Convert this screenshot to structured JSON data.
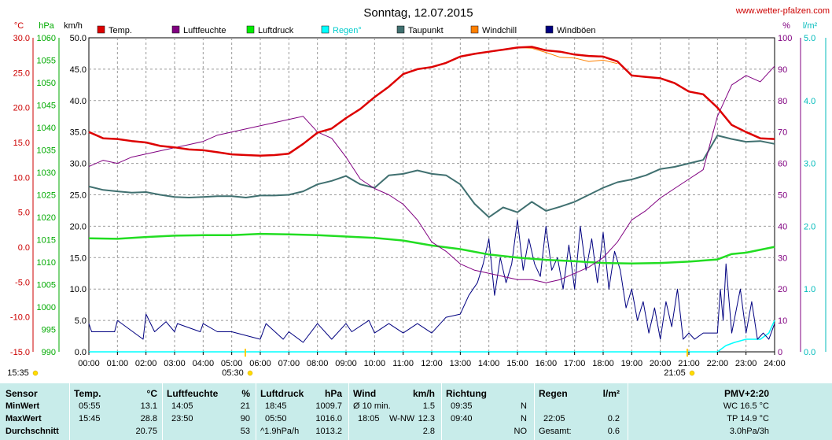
{
  "chart_data": {
    "type": "line",
    "title": "Sonntag, 12.07.2015",
    "source": "www.wetter-pfalzen.com",
    "axes": {
      "temp": {
        "unit": "°C",
        "range": [
          -15,
          30
        ],
        "ticks": [
          "-15.0",
          "-10.0",
          "-5.0",
          "0.0",
          "5.0",
          "10.0",
          "15.0",
          "20.0",
          "25.0",
          "30.0"
        ],
        "color": "#cc0000"
      },
      "pressure": {
        "unit": "hPa",
        "range": [
          990,
          1060
        ],
        "ticks": [
          "990",
          "995",
          "1000",
          "1005",
          "1010",
          "1015",
          "1020",
          "1025",
          "1030",
          "1035",
          "1040",
          "1045",
          "1050",
          "1055",
          "1060"
        ],
        "color": "#00aa00"
      },
      "wind": {
        "unit": "km/h",
        "range": [
          0,
          50
        ],
        "ticks": [
          "0.0",
          "5.0",
          "10.0",
          "15.0",
          "20.0",
          "25.0",
          "30.0",
          "35.0",
          "40.0",
          "45.0",
          "50.0"
        ],
        "color": "#000000"
      },
      "humidity": {
        "unit": "%",
        "range": [
          0,
          100
        ],
        "ticks": [
          "0",
          "10",
          "20",
          "30",
          "40",
          "50",
          "60",
          "70",
          "80",
          "90",
          "100"
        ],
        "color": "#800080"
      },
      "rain": {
        "unit": "l/m²",
        "range": [
          0,
          5
        ],
        "ticks": [
          "0.0",
          "1.0",
          "2.0",
          "3.0",
          "4.0",
          "5.0"
        ],
        "color": "#00bbbb"
      }
    },
    "x_ticks": [
      "00:00",
      "01:00",
      "02:00",
      "03:00",
      "04:00",
      "05:00",
      "06:00",
      "07:00",
      "08:00",
      "09:00",
      "10:00",
      "11:00",
      "12:00",
      "13:00",
      "14:00",
      "15:00",
      "16:00",
      "17:00",
      "18:00",
      "19:00",
      "20:00",
      "21:00",
      "22:00",
      "23:00",
      "24:00"
    ],
    "sun_markers": [
      {
        "time": "15:35",
        "hour": -1.5,
        "row": 1
      },
      {
        "time": "05:30",
        "hour": 5.5,
        "row": 1
      },
      {
        "time": "21:05",
        "hour": 21.08,
        "row": 1
      }
    ],
    "legend": [
      {
        "name": "Temp.",
        "color": "#dd0000"
      },
      {
        "name": "Luftfeuchte",
        "color": "#800080"
      },
      {
        "name": "Luftdruck",
        "color": "#00ee00"
      },
      {
        "name": "Regen°",
        "color": "#00ffff"
      },
      {
        "name": "Taupunkt",
        "color": "#407070"
      },
      {
        "name": "Windchill",
        "color": "#ff8000"
      },
      {
        "name": "Windböen",
        "color": "#000080"
      }
    ],
    "series": [
      {
        "name": "Temp.",
        "axis": "temp",
        "color": "#dd0000",
        "width": 2.5,
        "x": [
          0,
          0.5,
          1,
          1.5,
          2,
          2.5,
          3,
          3.5,
          4,
          4.5,
          5,
          5.5,
          6,
          6.5,
          7,
          7.5,
          8,
          8.5,
          9,
          9.5,
          10,
          10.5,
          11,
          11.5,
          12,
          12.5,
          13,
          13.5,
          14,
          14.5,
          15,
          15.5,
          16,
          16.5,
          17,
          17.5,
          18,
          18.5,
          19,
          19.5,
          20,
          20.5,
          21,
          21.5,
          22,
          22.5,
          23,
          23.5,
          24
        ],
        "y": [
          16.5,
          15.6,
          15.5,
          15.2,
          15.0,
          14.5,
          14.3,
          14.0,
          13.9,
          13.6,
          13.3,
          13.2,
          13.1,
          13.2,
          13.4,
          14.8,
          16.4,
          17.0,
          18.5,
          19.8,
          21.5,
          23.0,
          24.8,
          25.5,
          25.8,
          26.4,
          27.3,
          27.7,
          28.0,
          28.3,
          28.6,
          28.7,
          28.2,
          28.0,
          27.6,
          27.4,
          27.3,
          26.6,
          24.6,
          24.4,
          24.2,
          23.5,
          22.3,
          21.9,
          20.0,
          17.5,
          16.5,
          15.6,
          15.5
        ]
      },
      {
        "name": "Windchill",
        "axis": "temp",
        "color": "#ff8000",
        "width": 1,
        "x": [
          15,
          15.5,
          16,
          16.5,
          17,
          17.5,
          18,
          18.5
        ],
        "y": [
          28.6,
          28.5,
          27.9,
          27.2,
          27.1,
          26.6,
          26.8,
          26.3
        ]
      },
      {
        "name": "Luftfeuchte",
        "axis": "humidity",
        "color": "#800080",
        "width": 1,
        "x": [
          0,
          0.5,
          1,
          1.5,
          2,
          2.5,
          3,
          3.5,
          4,
          4.5,
          5,
          5.5,
          6,
          6.5,
          7,
          7.5,
          8,
          8.5,
          9,
          9.5,
          10,
          10.5,
          11,
          11.5,
          12,
          12.5,
          13,
          13.5,
          14,
          14.5,
          15,
          15.5,
          16,
          16.5,
          17,
          17.5,
          18,
          18.5,
          19,
          19.5,
          20,
          20.5,
          21,
          21.5,
          22,
          22.5,
          23,
          23.5,
          24
        ],
        "y": [
          59,
          61,
          60,
          62,
          63,
          64,
          65,
          66,
          67,
          69,
          70,
          71,
          72,
          73,
          74,
          75,
          70,
          68,
          62,
          55,
          52,
          50,
          47,
          42,
          35,
          32,
          28,
          26,
          25,
          24,
          23,
          23,
          22,
          23,
          25,
          27,
          30,
          35,
          42,
          45,
          49,
          52,
          55,
          58,
          75,
          85,
          88,
          86,
          91
        ]
      },
      {
        "name": "Luftdruck",
        "axis": "pressure",
        "color": "#22dd22",
        "width": 2.5,
        "x": [
          0,
          1,
          2,
          3,
          4,
          5,
          6,
          7,
          8,
          9,
          10,
          11,
          12,
          13,
          14,
          15,
          16,
          17,
          18,
          19,
          20,
          21,
          22,
          22.5,
          23,
          24
        ],
        "y": [
          1015.3,
          1015.2,
          1015.6,
          1015.9,
          1016.0,
          1016.0,
          1016.3,
          1016.2,
          1016.0,
          1015.7,
          1015.4,
          1014.8,
          1013.7,
          1012.9,
          1011.7,
          1011.0,
          1010.5,
          1010.2,
          1009.8,
          1009.7,
          1009.8,
          1010.1,
          1010.6,
          1011.8,
          1012.1,
          1013.4
        ]
      },
      {
        "name": "Taupunkt",
        "axis": "temp",
        "color": "#407070",
        "width": 2,
        "x": [
          0,
          0.5,
          1,
          1.5,
          2,
          2.5,
          3,
          3.5,
          4,
          4.5,
          5,
          5.5,
          6,
          6.5,
          7,
          7.5,
          8,
          8.5,
          9,
          9.5,
          10,
          10.5,
          11,
          11.5,
          12,
          12.5,
          13,
          13.5,
          14,
          14.5,
          15,
          15.5,
          16,
          16.5,
          17,
          17.5,
          18,
          18.5,
          19,
          19.5,
          20,
          20.5,
          21,
          21.5,
          22,
          22.5,
          23,
          23.5,
          24
        ],
        "y": [
          8.7,
          8.2,
          8.0,
          7.8,
          7.9,
          7.5,
          7.2,
          7.1,
          7.2,
          7.3,
          7.3,
          7.1,
          7.4,
          7.4,
          7.5,
          8.0,
          9.0,
          9.5,
          10.2,
          9.0,
          8.5,
          10.3,
          10.5,
          11.0,
          10.5,
          10.3,
          9.0,
          6.2,
          4.3,
          5.7,
          5.0,
          6.5,
          5.2,
          5.8,
          6.5,
          7.5,
          8.5,
          9.3,
          9.7,
          10.3,
          11.2,
          11.5,
          12.0,
          12.5,
          16.0,
          15.5,
          15.1,
          15.2,
          14.8
        ]
      },
      {
        "name": "Windböen",
        "axis": "wind",
        "color": "#000080",
        "width": 1,
        "x": [
          0,
          0.1,
          0.9,
          1.0,
          1.9,
          2.0,
          2.3,
          2.7,
          3.0,
          3.1,
          3.9,
          4.0,
          4.5,
          5.0,
          6.0,
          6.2,
          6.8,
          7.0,
          7.5,
          8.0,
          8.5,
          9.0,
          9.2,
          9.8,
          10.0,
          10.5,
          11.0,
          11.5,
          12.0,
          12.5,
          13.0,
          13.3,
          13.6,
          13.8,
          14.0,
          14.2,
          14.4,
          14.6,
          14.8,
          15.0,
          15.2,
          15.4,
          15.6,
          15.8,
          16.0,
          16.2,
          16.4,
          16.6,
          16.8,
          17.0,
          17.2,
          17.4,
          17.6,
          17.8,
          18.0,
          18.2,
          18.4,
          18.6,
          18.8,
          19.0,
          19.2,
          19.4,
          19.6,
          19.8,
          20.0,
          20.2,
          20.4,
          20.6,
          20.8,
          21.0,
          21.2,
          21.5,
          22.0,
          22.1,
          22.2,
          22.3,
          22.5,
          22.8,
          23.0,
          23.2,
          23.4,
          23.6,
          23.8,
          24.0
        ],
        "y": [
          4.5,
          3.2,
          3.2,
          5.0,
          2.0,
          6.0,
          3.2,
          4.8,
          3.2,
          4.5,
          3.2,
          4.5,
          3.2,
          3.2,
          2.0,
          4.5,
          2.0,
          3.2,
          1.5,
          4.5,
          2.0,
          4.5,
          3.2,
          5.0,
          3.0,
          4.5,
          3.0,
          4.5,
          3.0,
          5.5,
          6.0,
          9.0,
          11.0,
          14.0,
          18.0,
          9.0,
          15.0,
          11.0,
          14.0,
          21.0,
          13.0,
          18.0,
          14.0,
          12.0,
          20.0,
          13.0,
          15.0,
          10.0,
          17.0,
          10.0,
          20.0,
          13.0,
          18.0,
          11.0,
          19.0,
          10.0,
          16.0,
          13.0,
          7.0,
          10.0,
          5.0,
          8.0,
          3.0,
          7.0,
          2.0,
          8.0,
          4.0,
          10.0,
          2.0,
          3.0,
          2.0,
          3.0,
          3.0,
          10.0,
          5.0,
          14.0,
          3.0,
          10.0,
          3.0,
          8.0,
          2.0,
          3.0,
          2.0,
          4.5
        ]
      },
      {
        "name": "Regen°",
        "axis": "rain",
        "color": "#00ffff",
        "width": 1.5,
        "x": [
          0,
          22.0,
          22.3,
          22.6,
          23.0,
          23.5,
          23.8,
          24.0
        ],
        "y": [
          0,
          0,
          0.1,
          0.15,
          0.2,
          0.2,
          0.3,
          0.5
        ]
      }
    ]
  },
  "stats": {
    "header": {
      "sensor": "Sensor",
      "temp": "Temp.",
      "temp_unit": "°C",
      "hum": "Luftfeuchte",
      "hum_unit": "%",
      "press": "Luftdruck",
      "press_unit": "hPa",
      "wind": "Wind",
      "wind_unit": "km/h",
      "dir": "Richtung",
      "rain": "Regen",
      "rain_unit": "l/m²",
      "pmv": "PMV+2:20"
    },
    "min": {
      "label": "MinWert",
      "temp_time": "05:55",
      "temp": "13.1",
      "hum_time": "14:05",
      "hum": "21",
      "press_time": "18:45",
      "press": "1009.7",
      "wind_label": "Ø 10 min.",
      "wind": "1.5",
      "dir_time": "09:35",
      "dir": "N",
      "rain_time": "",
      "rain": "",
      "pmv": "WC 16.5 °C"
    },
    "max": {
      "label": "MaxWert",
      "temp_time": "15:45",
      "temp": "28.8",
      "hum_time": "23:50",
      "hum": "90",
      "press_time": "05:50",
      "press": "1016.0",
      "wind_time": "18:05",
      "wind_dir": "W-NW",
      "wind": "12.3",
      "dir_time": "09:40",
      "dir": "N",
      "rain_time": "22:05",
      "rain": "0.2",
      "pmv": "TP 14.9 °C"
    },
    "avg": {
      "label": "Durchschnitt",
      "temp": "20.75",
      "hum": "53",
      "press_trend": "^1.9hPa/h",
      "press": "1013.2",
      "wind": "2.8",
      "dir": "NO",
      "rain_label": "Gesamt:",
      "rain": "0.6",
      "pmv": "3.0hPa/3h"
    }
  }
}
